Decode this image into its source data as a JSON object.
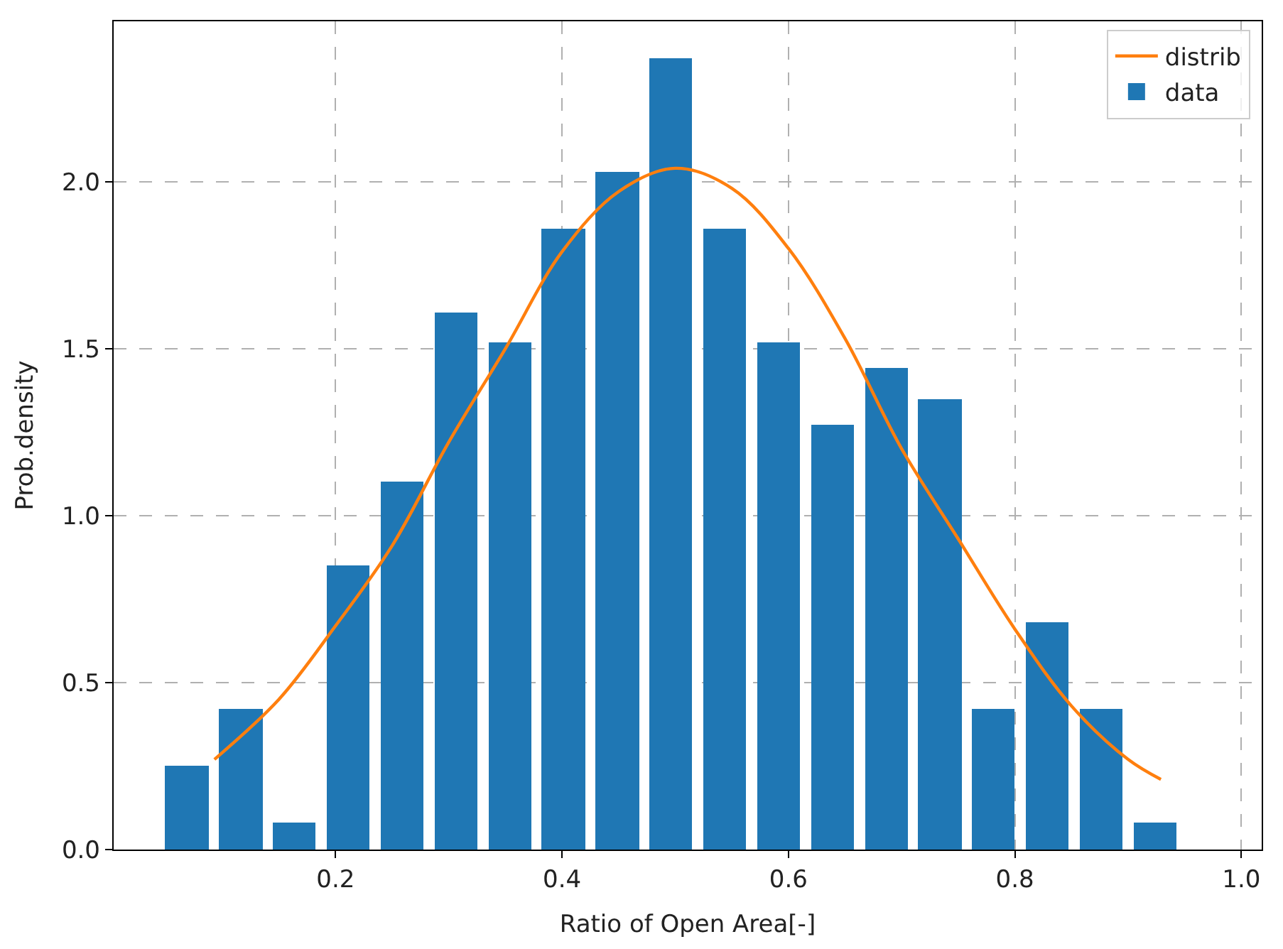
{
  "chart_data": {
    "type": "histogram",
    "xlabel": "Ratio of Open Area[-]",
    "ylabel": "Prob.density",
    "xlim": [
      0.004,
      1.018
    ],
    "ylim": [
      0,
      2.48
    ],
    "xticks": [
      {
        "value": 0.2,
        "label": "0.2"
      },
      {
        "value": 0.4,
        "label": "0.4"
      },
      {
        "value": 0.6,
        "label": "0.6"
      },
      {
        "value": 0.8,
        "label": "0.8"
      },
      {
        "value": 1.0,
        "label": "1.0"
      }
    ],
    "yticks": [
      {
        "value": 0,
        "label": "0.0"
      },
      {
        "value": 0.5,
        "label": "0.5"
      },
      {
        "value": 1.0,
        "label": "1.0"
      },
      {
        "value": 1.5,
        "label": "1.5"
      },
      {
        "value": 2.0,
        "label": "2.0"
      }
    ],
    "grid": true,
    "legend": "top right",
    "series": [
      {
        "name": "distrib",
        "type": "line",
        "color": "#ff7f0e",
        "x": [
          0.093,
          0.15,
          0.2,
          0.25,
          0.3,
          0.35,
          0.4,
          0.45,
          0.5,
          0.55,
          0.6,
          0.65,
          0.7,
          0.75,
          0.8,
          0.85,
          0.9,
          0.929
        ],
        "values": [
          0.27,
          0.45,
          0.67,
          0.91,
          1.22,
          1.5,
          1.79,
          1.97,
          2.04,
          1.98,
          1.8,
          1.53,
          1.2,
          0.93,
          0.66,
          0.43,
          0.27,
          0.21
        ]
      },
      {
        "name": "data",
        "color": "#1f77b4",
        "bins": [
          0.045,
          0.0925,
          0.14,
          0.1875,
          0.235,
          0.2825,
          0.33,
          0.3775,
          0.425,
          0.4725,
          0.52,
          0.5675,
          0.615,
          0.6625,
          0.71,
          0.7575,
          0.805,
          0.8525,
          0.9,
          0.9475
        ],
        "values": [
          0.25,
          0.42,
          0.08,
          0.85,
          1.1,
          1.61,
          1.52,
          1.86,
          2.03,
          2.37,
          1.86,
          1.52,
          1.27,
          1.44,
          1.35,
          0.42,
          0.68,
          0.42,
          0.08
        ]
      }
    ]
  }
}
